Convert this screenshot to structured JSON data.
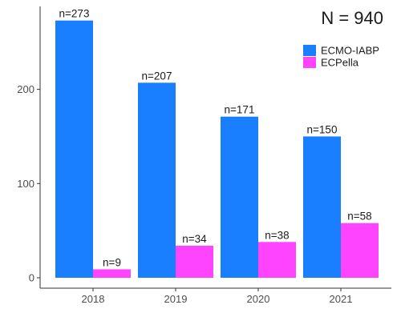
{
  "chart_data": {
    "type": "bar",
    "categories": [
      "2018",
      "2019",
      "2020",
      "2021"
    ],
    "series": [
      {
        "name": "ECMO-IABP",
        "color": "#1a7fff",
        "values": [
          273,
          207,
          171,
          150
        ],
        "labels": [
          "n=273",
          "n=207",
          "n=171",
          "n=150"
        ]
      },
      {
        "name": "ECPella",
        "color": "#ff44ff",
        "values": [
          9,
          34,
          38,
          58
        ],
        "labels": [
          "n=9",
          "n=34",
          "n=38",
          "n=58"
        ]
      }
    ],
    "annotation": "N = 940",
    "yticks": [
      0,
      100,
      200
    ],
    "ylim": [
      0,
      288
    ],
    "grid": false,
    "legend_position": "top-right"
  }
}
